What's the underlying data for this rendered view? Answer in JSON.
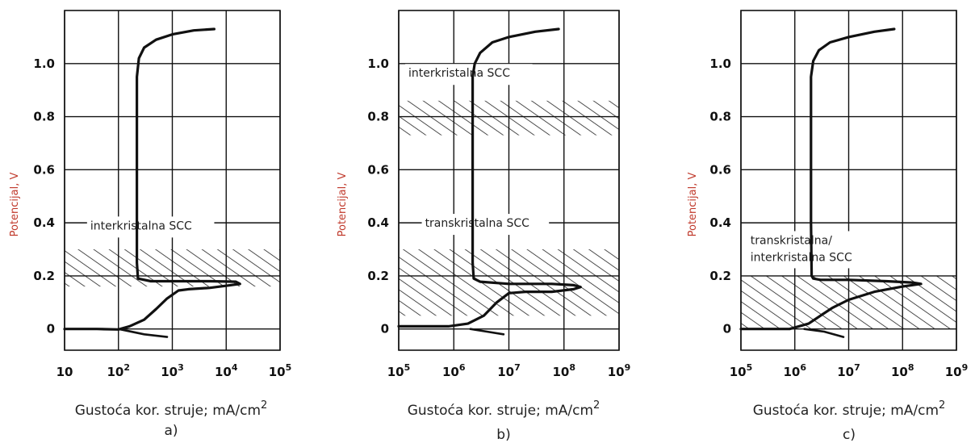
{
  "chart_data": [
    {
      "type": "line",
      "panel_label": "a)",
      "ylabel": "Potencijal, V",
      "xlabel": "Gustoća kor. struje; mA/cm",
      "xlabel_sup": "2",
      "x_log": true,
      "xlim": [
        10,
        100000
      ],
      "ylim": [
        -0.08,
        1.2
      ],
      "x_tick_labels": [
        {
          "base": "10",
          "exp": ""
        },
        {
          "base": "10",
          "exp": "2"
        },
        {
          "base": "10",
          "exp": "3"
        },
        {
          "base": "10",
          "exp": "4"
        },
        {
          "base": "10",
          "exp": "5"
        }
      ],
      "y_tick_labels": [
        "0",
        "0.2",
        "0.4",
        "0.6",
        "0.8",
        "1.0"
      ],
      "grid": true,
      "hatched_band": {
        "from": 0.16,
        "to": 0.3
      },
      "annotation": {
        "lines": [
          "interkristalna SCC"
        ],
        "x": 30,
        "y": 0.375
      },
      "curves": [
        [
          [
            10,
            0.0
          ],
          [
            40,
            0.0
          ],
          [
            100,
            -0.002
          ],
          [
            160,
            0.01
          ],
          [
            300,
            0.035
          ],
          [
            500,
            0.075
          ],
          [
            800,
            0.115
          ],
          [
            1300,
            0.145
          ],
          [
            2000,
            0.15
          ],
          [
            5000,
            0.155
          ],
          [
            12000,
            0.165
          ],
          [
            18000,
            0.17
          ],
          [
            15000,
            0.178
          ],
          [
            5000,
            0.18
          ],
          [
            1500,
            0.18
          ],
          [
            400,
            0.18
          ],
          [
            230,
            0.19
          ],
          [
            220,
            0.25
          ],
          [
            220,
            0.6
          ],
          [
            220,
            0.95
          ],
          [
            240,
            1.02
          ],
          [
            300,
            1.06
          ],
          [
            500,
            1.09
          ],
          [
            1000,
            1.11
          ],
          [
            2500,
            1.125
          ],
          [
            6000,
            1.13
          ]
        ],
        [
          [
            100,
            0.0
          ],
          [
            300,
            -0.02
          ],
          [
            800,
            -0.03
          ]
        ]
      ]
    },
    {
      "type": "line",
      "panel_label": "b)",
      "ylabel": "Potencijal, V",
      "xlabel": "Gustoća kor. struje; mA/cm",
      "xlabel_sup": "2",
      "x_log": true,
      "xlim": [
        100000,
        1000000000
      ],
      "ylim": [
        -0.08,
        1.2
      ],
      "x_tick_labels": [
        {
          "base": "10",
          "exp": "5"
        },
        {
          "base": "10",
          "exp": "6"
        },
        {
          "base": "10",
          "exp": "7"
        },
        {
          "base": "10",
          "exp": "8"
        },
        {
          "base": "10",
          "exp": "9"
        }
      ],
      "y_tick_labels": [
        "0",
        "0.2",
        "0.4",
        "0.6",
        "0.8",
        "1.0"
      ],
      "grid": true,
      "hatched_band": {
        "from": 0.05,
        "to": 0.3
      },
      "upper_hatched_band": {
        "from": 0.73,
        "to": 0.86
      },
      "annotation": {
        "lines": [
          "transkristalna SCC"
        ],
        "x": 300000,
        "y": 0.385
      },
      "annotation2": {
        "lines": [
          "interkristalna SCC"
        ],
        "x": 150000,
        "y": 0.95
      },
      "curves": [
        [
          [
            100000,
            0.01
          ],
          [
            800000,
            0.01
          ],
          [
            1800000,
            0.02
          ],
          [
            3500000,
            0.05
          ],
          [
            6000000,
            0.1
          ],
          [
            10000000,
            0.135
          ],
          [
            20000000,
            0.14
          ],
          [
            60000000,
            0.14
          ],
          [
            150000000,
            0.15
          ],
          [
            200000000,
            0.158
          ],
          [
            150000000,
            0.165
          ],
          [
            60000000,
            0.17
          ],
          [
            10000000,
            0.17
          ],
          [
            3000000,
            0.178
          ],
          [
            2300000,
            0.19
          ],
          [
            2200000,
            0.25
          ],
          [
            2200000,
            0.6
          ],
          [
            2200000,
            0.95
          ],
          [
            2400000,
            1.0
          ],
          [
            3000000,
            1.04
          ],
          [
            5000000,
            1.08
          ],
          [
            10000000,
            1.1
          ],
          [
            30000000,
            1.12
          ],
          [
            80000000,
            1.13
          ]
        ],
        [
          [
            2000000,
            0.0
          ],
          [
            4000000,
            -0.01
          ],
          [
            8000000,
            -0.02
          ]
        ]
      ]
    },
    {
      "type": "line",
      "panel_label": "c)",
      "ylabel": "Potencijal, V",
      "xlabel": "Gustoća kor. struje; mA/cm",
      "xlabel_sup": "2",
      "x_log": true,
      "xlim": [
        100000,
        1000000000
      ],
      "ylim": [
        -0.08,
        1.2
      ],
      "x_tick_labels": [
        {
          "base": "10",
          "exp": "5"
        },
        {
          "base": "10",
          "exp": "6"
        },
        {
          "base": "10",
          "exp": "7"
        },
        {
          "base": "10",
          "exp": "8"
        },
        {
          "base": "10",
          "exp": "9"
        }
      ],
      "y_tick_labels": [
        "0",
        "0.2",
        "0.4",
        "0.6",
        "0.8",
        "1.0"
      ],
      "grid": true,
      "hatched_band": {
        "from": 0.0,
        "to": 0.2
      },
      "annotation": {
        "lines": [
          "transkristalna/",
          "interkristalna SCC"
        ],
        "x": 150000,
        "y": 0.32
      },
      "curves": [
        [
          [
            100000,
            0.0
          ],
          [
            800000,
            0.0
          ],
          [
            1800000,
            0.02
          ],
          [
            3000000,
            0.05
          ],
          [
            5000000,
            0.08
          ],
          [
            10000000,
            0.11
          ],
          [
            30000000,
            0.14
          ],
          [
            100000000,
            0.16
          ],
          [
            220000000,
            0.17
          ],
          [
            150000000,
            0.175
          ],
          [
            50000000,
            0.18
          ],
          [
            10000000,
            0.185
          ],
          [
            3000000,
            0.185
          ],
          [
            2200000,
            0.19
          ],
          [
            2050000,
            0.2
          ],
          [
            2000000,
            0.4
          ],
          [
            2000000,
            0.95
          ],
          [
            2200000,
            1.01
          ],
          [
            2800000,
            1.05
          ],
          [
            4500000,
            1.08
          ],
          [
            10000000,
            1.1
          ],
          [
            30000000,
            1.12
          ],
          [
            70000000,
            1.13
          ]
        ],
        [
          [
            1500000,
            0.0
          ],
          [
            3500000,
            -0.01
          ],
          [
            8000000,
            -0.03
          ]
        ]
      ]
    }
  ]
}
